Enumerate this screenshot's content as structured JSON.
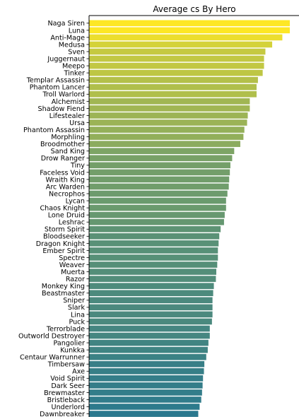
{
  "chart_data": {
    "type": "bar",
    "orientation": "horizontal",
    "title": "Average cs By Hero",
    "xlabel": "",
    "ylabel": "",
    "xlim": [
      0,
      148
    ],
    "grid": false,
    "legend": "none",
    "colormap": "viridis",
    "categories": [
      "Naga Siren",
      "Luna",
      "Anti-Mage",
      "Medusa",
      "Sven",
      "Juggernaut",
      "Meepo",
      "Tinker",
      "Templar Assassin",
      "Phantom Lancer",
      "Troll Warlord",
      "Alchemist",
      "Shadow Fiend",
      "Lifestealer",
      "Ursa",
      "Phantom Assassin",
      "Morphling",
      "Broodmother",
      "Sand King",
      "Drow Ranger",
      "Tiny",
      "Faceless Void",
      "Wraith King",
      "Arc Warden",
      "Necrophos",
      "Lycan",
      "Chaos Knight",
      "Lone Druid",
      "Leshrac",
      "Storm Spirit",
      "Bloodseeker",
      "Dragon Knight",
      "Ember Spirit",
      "Spectre",
      "Weaver",
      "Muerta",
      "Razor",
      "Monkey King",
      "Beastmaster",
      "Sniper",
      "Slark",
      "Lina",
      "Puck",
      "Terrorblade",
      "Outworld Destroyer",
      "Pangolier",
      "Kunkka",
      "Centaur Warrunner",
      "Timbersaw",
      "Axe",
      "Void Spirit",
      "Dark Seer",
      "Brewmaster",
      "Bristleback",
      "Underlord",
      "Dawnbreaker"
    ],
    "values": [
      148,
      148,
      142.5,
      135,
      130,
      129,
      129,
      128,
      124.5,
      123.5,
      123.5,
      118.5,
      118.5,
      117,
      116.5,
      114.5,
      113.8,
      111.5,
      107,
      105.5,
      104.2,
      103.8,
      103.3,
      103,
      102,
      101,
      101,
      100,
      99.5,
      97,
      96,
      95.5,
      95,
      95,
      94.5,
      93.8,
      93.5,
      92,
      91.5,
      91,
      91,
      91,
      90.6,
      89,
      89,
      88,
      87.5,
      86.4,
      85,
      84.7,
      84,
      83.7,
      83.3,
      82.7,
      81.5,
      80.5
    ],
    "color_range": {
      "min": "#2a788e",
      "max": "#fde725"
    }
  }
}
